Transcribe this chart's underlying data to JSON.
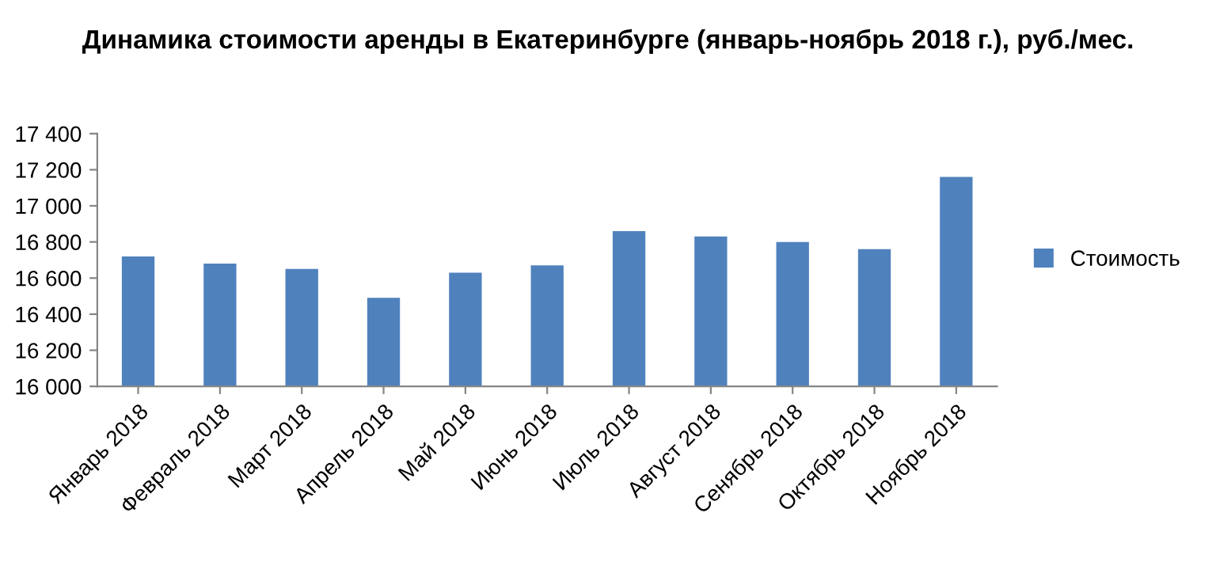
{
  "chart_data": {
    "type": "bar",
    "title": "Динамика стоимости аренды в Екатеринбурге (январь-ноябрь 2018 г.), руб./мес.",
    "categories": [
      "Январь 2018",
      "Февраль 2018",
      "Март 2018",
      "Апрель 2018",
      "Май 2018",
      "Июнь 2018",
      "Июль 2018",
      "Август 2018",
      "Сенябрь 2018",
      "Октябрь 2018",
      "Ноябрь 2018"
    ],
    "series": [
      {
        "name": "Стоимость",
        "color": "#4f81bd",
        "values": [
          16720,
          16680,
          16650,
          16490,
          16630,
          16670,
          16860,
          16830,
          16800,
          16760,
          17160
        ]
      }
    ],
    "ylim": [
      16000,
      17400
    ],
    "yticks": [
      {
        "value": 16000,
        "label": "16 000"
      },
      {
        "value": 16200,
        "label": "16 200"
      },
      {
        "value": 16400,
        "label": "16 400"
      },
      {
        "value": 16600,
        "label": "16 600"
      },
      {
        "value": 16800,
        "label": "16 800"
      },
      {
        "value": 17000,
        "label": "17 000"
      },
      {
        "value": 17200,
        "label": "17 200"
      },
      {
        "value": 17400,
        "label": "17 400"
      }
    ],
    "grid": false,
    "legend": "right"
  }
}
